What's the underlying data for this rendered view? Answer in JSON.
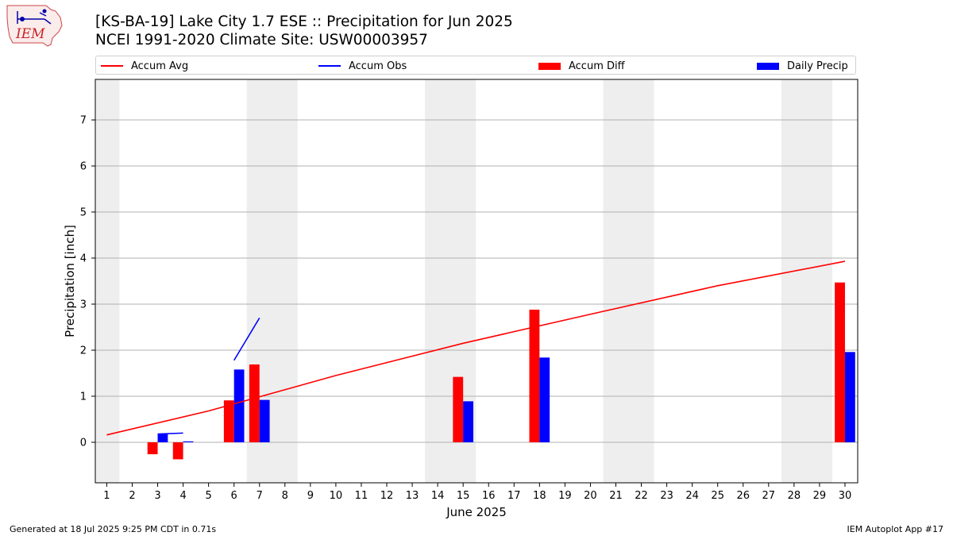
{
  "header": {
    "logo_text": "IEM",
    "title_line1": "[KS-BA-19] Lake City 1.7 ESE :: Precipitation for Jun 2025",
    "title_line2": "NCEI 1991-2020 Climate Site: USW00003957"
  },
  "footer": {
    "generated": "Generated at 18 Jul 2025 9:25 PM CDT in 0.71s",
    "app": "IEM Autoplot App #17"
  },
  "chart_data": {
    "type": "bar",
    "xlabel": "June 2025",
    "ylabel": "Precipitation [inch]",
    "xlim": [
      0.55,
      30.5
    ],
    "ylim": [
      -0.88,
      7.88
    ],
    "yticks": [
      0,
      1,
      2,
      3,
      4,
      5,
      6,
      7
    ],
    "days": [
      1,
      2,
      3,
      4,
      5,
      6,
      7,
      8,
      9,
      10,
      11,
      12,
      13,
      14,
      15,
      16,
      17,
      18,
      19,
      20,
      21,
      22,
      23,
      24,
      25,
      26,
      27,
      28,
      29,
      30
    ],
    "weekend_spans": [
      [
        0.5,
        1.5
      ],
      [
        6.5,
        8.5
      ],
      [
        13.5,
        15.5
      ],
      [
        20.5,
        22.5
      ],
      [
        27.5,
        29.5
      ]
    ],
    "legend": [
      {
        "label": "Accum Avg",
        "kind": "line",
        "color": "#ff0000"
      },
      {
        "label": "Accum Obs",
        "kind": "line",
        "color": "#0000ff"
      },
      {
        "label": "Accum Diff",
        "kind": "bar",
        "color": "#ff0000"
      },
      {
        "label": "Daily Precip",
        "kind": "bar",
        "color": "#0000ff"
      }
    ],
    "series": [
      {
        "name": "Accum Avg",
        "color": "#ff0000",
        "x": [
          1,
          5,
          10,
          15,
          20,
          25,
          30
        ],
        "y": [
          0.16,
          0.68,
          1.45,
          2.15,
          2.78,
          3.4,
          3.93
        ]
      },
      {
        "name": "Accum Obs",
        "color": "#0000ff",
        "segments": [
          {
            "x": [
              3,
              4
            ],
            "y": [
              0.18,
              0.2
            ]
          },
          {
            "x": [
              6,
              7
            ],
            "y": [
              1.78,
              2.7
            ]
          }
        ]
      },
      {
        "name": "Accum Diff",
        "color": "#ff0000",
        "x": [
          3,
          4,
          6,
          7,
          15,
          18,
          30
        ],
        "y": [
          -0.26,
          -0.37,
          0.91,
          1.69,
          1.42,
          2.88,
          3.47
        ]
      },
      {
        "name": "Daily Precip",
        "color": "#0000ff",
        "x": [
          3,
          4,
          6,
          7,
          15,
          18,
          30
        ],
        "y": [
          0.18,
          0.02,
          1.58,
          0.92,
          0.89,
          1.84,
          1.96
        ]
      }
    ]
  }
}
